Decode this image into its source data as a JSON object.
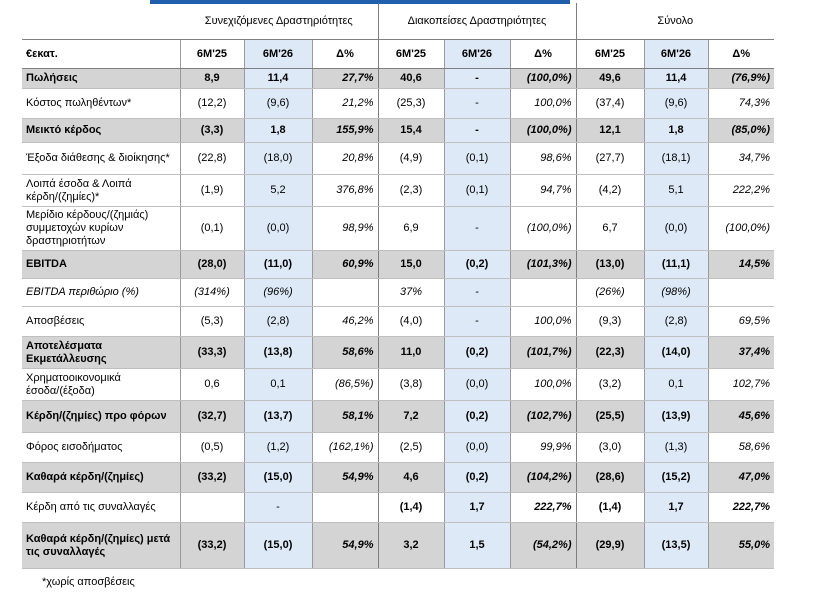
{
  "groups": {
    "continuing": "Συνεχιζόμενες Δραστηριότητες",
    "discontinued": "Διακοπείσες Δραστηριότητες",
    "total": "Σύνολο"
  },
  "columns": {
    "label": "€εκατ.",
    "c1": "6M'25",
    "c2": "6M'26",
    "c3": "Δ%"
  },
  "rows": [
    {
      "label": "Πωλήσεις",
      "style": "bold",
      "v": [
        "8,9",
        "11,4",
        "27,7%",
        "40,6",
        "-",
        "(100,0%)",
        "49,6",
        "11,4",
        "(76,9%)"
      ]
    },
    {
      "label": "Κόστος πωληθέντων*",
      "style": "",
      "v": [
        "(12,2)",
        "(9,6)",
        "21,2%",
        "(25,3)",
        "-",
        "100,0%",
        "(37,4)",
        "(9,6)",
        "74,3%"
      ]
    },
    {
      "label": "Μεικτό κέρδος",
      "style": "bold",
      "v": [
        "(3,3)",
        "1,8",
        "155,9%",
        "15,4",
        "-",
        "(100,0%)",
        "12,1",
        "1,8",
        "(85,0%)"
      ]
    },
    {
      "label": "Έξοδα διάθεσης & διοίκησης*",
      "style": "",
      "v": [
        "(22,8)",
        "(18,0)",
        "20,8%",
        "(4,9)",
        "(0,1)",
        "98,6%",
        "(27,7)",
        "(18,1)",
        "34,7%"
      ]
    },
    {
      "label": "Λοιπά έσοδα & Λοιπά κέρδη/(ζημίες)*",
      "style": "",
      "v": [
        "(1,9)",
        "5,2",
        "376,8%",
        "(2,3)",
        "(0,1)",
        "94,7%",
        "(4,2)",
        "5,1",
        "222,2%"
      ]
    },
    {
      "label": "Μερίδιο κέρδους/(ζημιάς) συμμετοχών κυρίων δραστηριοτήτων",
      "style": "",
      "v": [
        "(0,1)",
        "(0,0)",
        "98,9%",
        "6,9",
        "-",
        "(100,0%)",
        "6,7",
        "(0,0)",
        "(100,0%)"
      ]
    },
    {
      "label": "EBITDA",
      "style": "bold",
      "v": [
        "(28,0)",
        "(11,0)",
        "60,9%",
        "15,0",
        "(0,2)",
        "(101,3%)",
        "(13,0)",
        "(11,1)",
        "14,5%"
      ]
    },
    {
      "label": "EBITDA περιθώριο (%)",
      "style": "it",
      "v": [
        "(314%)",
        "(96%)",
        "",
        "37%",
        "-",
        "",
        "(26%)",
        "(98%)",
        ""
      ]
    },
    {
      "label": "Αποσβέσεις",
      "style": "",
      "v": [
        "(5,3)",
        "(2,8)",
        "46,2%",
        "(4,0)",
        "-",
        "100,0%",
        "(9,3)",
        "(2,8)",
        "69,5%"
      ]
    },
    {
      "label": "Αποτελέσματα Εκμετάλλευσης",
      "style": "bold",
      "v": [
        "(33,3)",
        "(13,8)",
        "58,6%",
        "11,0",
        "(0,2)",
        "(101,7%)",
        "(22,3)",
        "(14,0)",
        "37,4%"
      ]
    },
    {
      "label": "Χρηματοοικονομικά έσοδα/(έξοδα)",
      "style": "",
      "v": [
        "0,6",
        "0,1",
        "(86,5%)",
        "(3,8)",
        "(0,0)",
        "100,0%",
        "(3,2)",
        "0,1",
        "102,7%"
      ]
    },
    {
      "label": "Κέρδη/(ζημίες) προ φόρων",
      "style": "bold",
      "v": [
        "(32,7)",
        "(13,7)",
        "58,1%",
        "7,2",
        "(0,2)",
        "(102,7%)",
        "(25,5)",
        "(13,9)",
        "45,6%"
      ]
    },
    {
      "label": "Φόρος εισοδήματος",
      "style": "",
      "v": [
        "(0,5)",
        "(1,2)",
        "(162,1%)",
        "(2,5)",
        "(0,0)",
        "99,9%",
        "(3,0)",
        "(1,3)",
        "58,6%"
      ]
    },
    {
      "label": "Καθαρά κέρδη/(ζημίες)",
      "style": "bold",
      "v": [
        "(33,2)",
        "(15,0)",
        "54,9%",
        "4,6",
        "(0,2)",
        "(104,2%)",
        "(28,6)",
        "(15,2)",
        "47,0%"
      ]
    },
    {
      "label": "Κέρδη από τις συναλλαγές",
      "style": "tx",
      "v": [
        "",
        "-",
        "",
        "(1,4)",
        "1,7",
        "222,7%",
        "(1,4)",
        "1,7",
        "222,7%"
      ]
    },
    {
      "label": "Καθαρά κέρδη/(ζημίες) μετά τις συναλλαγές",
      "style": "bold",
      "v": [
        "(33,2)",
        "(15,0)",
        "54,9%",
        "3,2",
        "1,5",
        "(54,2%)",
        "(29,9)",
        "(13,5)",
        "55,0%"
      ]
    }
  ],
  "footnote": "*χωρίς αποσβέσεις",
  "colors": {
    "shade": "#d4d4d4",
    "current_period": "#dde9f6",
    "accent": "#1f5fae"
  }
}
